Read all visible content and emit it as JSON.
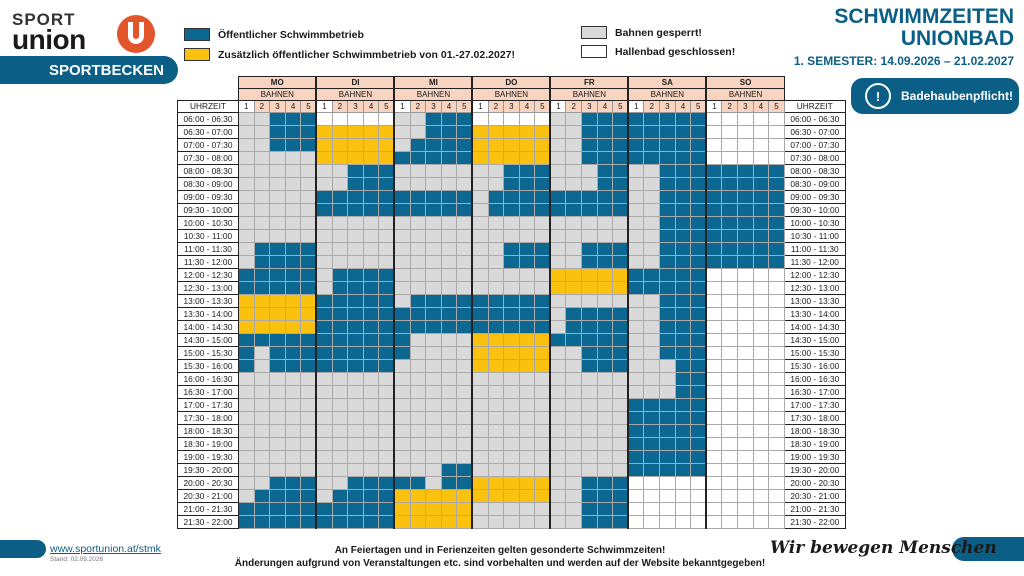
{
  "logo": {
    "sport": "SPORT",
    "union": "union"
  },
  "banner": {
    "label": "SPORTBECKEN"
  },
  "legend": {
    "public": "Öffentlicher Schwimmbetrieb",
    "extra": "Zusätzlich öffentlicher Schwimmbetrieb von 01.-27.02.2027!",
    "closed_lanes": "Bahnen gesperrt!",
    "hall_closed": "Hallenbad geschlossen!"
  },
  "title": {
    "line1": "SCHWIMMZEITEN",
    "line2": "UNIONBAD",
    "line3": "1. SEMESTER: 14.09.2026 – 21.02.2027"
  },
  "cap_notice": {
    "label": "Badehaubenpflicht!",
    "icon": "exclamation-icon"
  },
  "colors": {
    "blue": "#0c6791",
    "yellow": "#fbc10f",
    "grey": "#d9d9d9",
    "white": "#ffffff",
    "header": "#f8d3bf",
    "brand": "#0b5f86"
  },
  "schedule": {
    "time_header": "UHRZEIT",
    "lanes_label": "BAHNEN",
    "lanes": [
      "1",
      "2",
      "3",
      "4",
      "5"
    ],
    "days": [
      "MO",
      "DI",
      "MI",
      "DO",
      "FR",
      "SA",
      "SO"
    ],
    "times": [
      "06:00 - 06:30",
      "06:30 - 07:00",
      "07:00 - 07:30",
      "07:30 - 08:00",
      "08:00 - 08:30",
      "08:30 - 09:00",
      "09:00 - 09:30",
      "09:30 - 10:00",
      "10:00 - 10:30",
      "10:30 - 11:00",
      "11:00 - 11:30",
      "11:30 - 12:00",
      "12:00 - 12:30",
      "12:30 - 13:00",
      "13:00 - 13:30",
      "13:30 - 14:00",
      "14:00 - 14:30",
      "14:30 - 15:00",
      "15:00 - 15:30",
      "15:30 - 16:00",
      "16:00 - 16:30",
      "16:30 - 17:00",
      "17:00 - 17:30",
      "17:30 - 18:00",
      "18:00 - 18:30",
      "18:30 - 19:00",
      "19:00 - 19:30",
      "19:30 - 20:00",
      "20:00 - 20:30",
      "20:30 - 21:00",
      "21:00 - 21:30",
      "21:30 - 22:00"
    ],
    "status_legend": {
      "b": "public",
      "y": "extra",
      "g": "closed_lanes",
      "w": "hall_closed"
    },
    "grid": {
      "MO": [
        "ggbbb",
        "ggbbb",
        "ggbbb",
        "ggggg",
        "ggggg",
        "ggggg",
        "ggggg",
        "ggggg",
        "ggggg",
        "ggggg",
        "gbbbb",
        "gbbbb",
        "bbbbb",
        "bbbbb",
        "yyyyy",
        "yyyyy",
        "yyyyy",
        "bbbbb",
        "bgbbb",
        "bgbbb",
        "ggggg",
        "ggggg",
        "ggggg",
        "ggggg",
        "ggggg",
        "ggggg",
        "ggggg",
        "ggggg",
        "ggbbb",
        "gbbbb",
        "bbbbb",
        "bbbbb"
      ],
      "DI": [
        "wwwww",
        "yyyyy",
        "yyyyy",
        "yyyyy",
        "ggbbb",
        "ggbbb",
        "bbbbb",
        "bbbbb",
        "ggggg",
        "ggggg",
        "ggggg",
        "ggggg",
        "gbbbb",
        "gbbbb",
        "bbbbb",
        "bbbbb",
        "bbbbb",
        "bbbbb",
        "bbbbb",
        "bbbbb",
        "ggggg",
        "ggggg",
        "ggggg",
        "ggggg",
        "ggggg",
        "ggggg",
        "ggggg",
        "ggggg",
        "ggbbb",
        "gbbbb",
        "bbbbb",
        "bbbbb"
      ],
      "MI": [
        "ggbbb",
        "ggbbb",
        "gbbbb",
        "bbbbb",
        "ggggg",
        "ggggg",
        "bbbbb",
        "bbbbb",
        "ggggg",
        "ggggg",
        "ggggg",
        "ggggg",
        "ggggg",
        "ggggg",
        "gbbbb",
        "bbbbb",
        "bbbbb",
        "bgggg",
        "bgggg",
        "ggggg",
        "ggggg",
        "ggggg",
        "ggggg",
        "ggggg",
        "ggggg",
        "ggggg",
        "ggggg",
        "gggbb",
        "bbgbb",
        "yyyyy",
        "yyyyy",
        "yyyyy"
      ],
      "DO": [
        "wwwww",
        "yyyyy",
        "yyyyy",
        "yyyyy",
        "ggbbb",
        "ggbbb",
        "gbbbb",
        "gbbbb",
        "ggggg",
        "ggggg",
        "ggbbb",
        "ggbbb",
        "ggggg",
        "ggggg",
        "bbbbb",
        "bbbbb",
        "bbbbb",
        "yyyyy",
        "yyyyy",
        "yyyyy",
        "ggggg",
        "ggggg",
        "ggggg",
        "ggggg",
        "ggggg",
        "ggggg",
        "ggggg",
        "ggggg",
        "yyyyy",
        "yyyyy",
        "ggggg",
        "ggggg"
      ],
      "FR": [
        "ggbbb",
        "ggbbb",
        "ggbbb",
        "ggbbb",
        "gggbb",
        "gggbb",
        "bbbbb",
        "bbbbb",
        "ggggg",
        "ggggg",
        "ggbbb",
        "ggbbb",
        "yyyyy",
        "yyyyy",
        "ggggg",
        "gbbbb",
        "gbbbb",
        "bbbbb",
        "ggbbb",
        "ggbbb",
        "ggggg",
        "ggggg",
        "ggggg",
        "ggggg",
        "ggggg",
        "ggggg",
        "ggggg",
        "ggggg",
        "ggbbb",
        "ggbbb",
        "ggbbb",
        "ggbbb"
      ],
      "SA": [
        "bbbbb",
        "bbbbb",
        "bbbbb",
        "bbbbb",
        "ggbbb",
        "ggbbb",
        "ggbbb",
        "ggbbb",
        "ggbbb",
        "ggbbb",
        "ggbbb",
        "ggbbb",
        "bbbbb",
        "bbbbb",
        "ggbbb",
        "ggbbb",
        "ggbbb",
        "ggbbb",
        "ggbbb",
        "gggbb",
        "gggbb",
        "gggbb",
        "bbbbb",
        "bbbbb",
        "bbbbb",
        "bbbbb",
        "bbbbb",
        "bbbbb",
        "wwwww",
        "wwwww",
        "wwwww",
        "wwwww"
      ],
      "SO": [
        "wwwww",
        "wwwww",
        "wwwww",
        "wwwww",
        "bbbbb",
        "bbbbb",
        "bbbbb",
        "bbbbb",
        "bbbbb",
        "bbbbb",
        "bbbbb",
        "bbbbb",
        "wwwww",
        "wwwww",
        "wwwww",
        "wwwww",
        "wwwww",
        "wwwww",
        "wwwww",
        "wwwww",
        "wwwww",
        "wwwww",
        "wwwww",
        "wwwww",
        "wwwww",
        "wwwww",
        "wwwww",
        "wwwww",
        "wwwww",
        "wwwww",
        "wwwww",
        "wwwww"
      ]
    }
  },
  "footer": {
    "url": "www.sportunion.at/stmk",
    "stand": "Stand: 02.09.2026",
    "note1": "An Feiertagen und in Ferienzeiten gelten gesonderte Schwimmzeiten!",
    "note2": "Änderungen aufgrund von Veranstaltungen etc. sind vorbehalten und werden auf der Website bekanntgegeben!",
    "slogan": "Wir bewegen Menschen"
  }
}
